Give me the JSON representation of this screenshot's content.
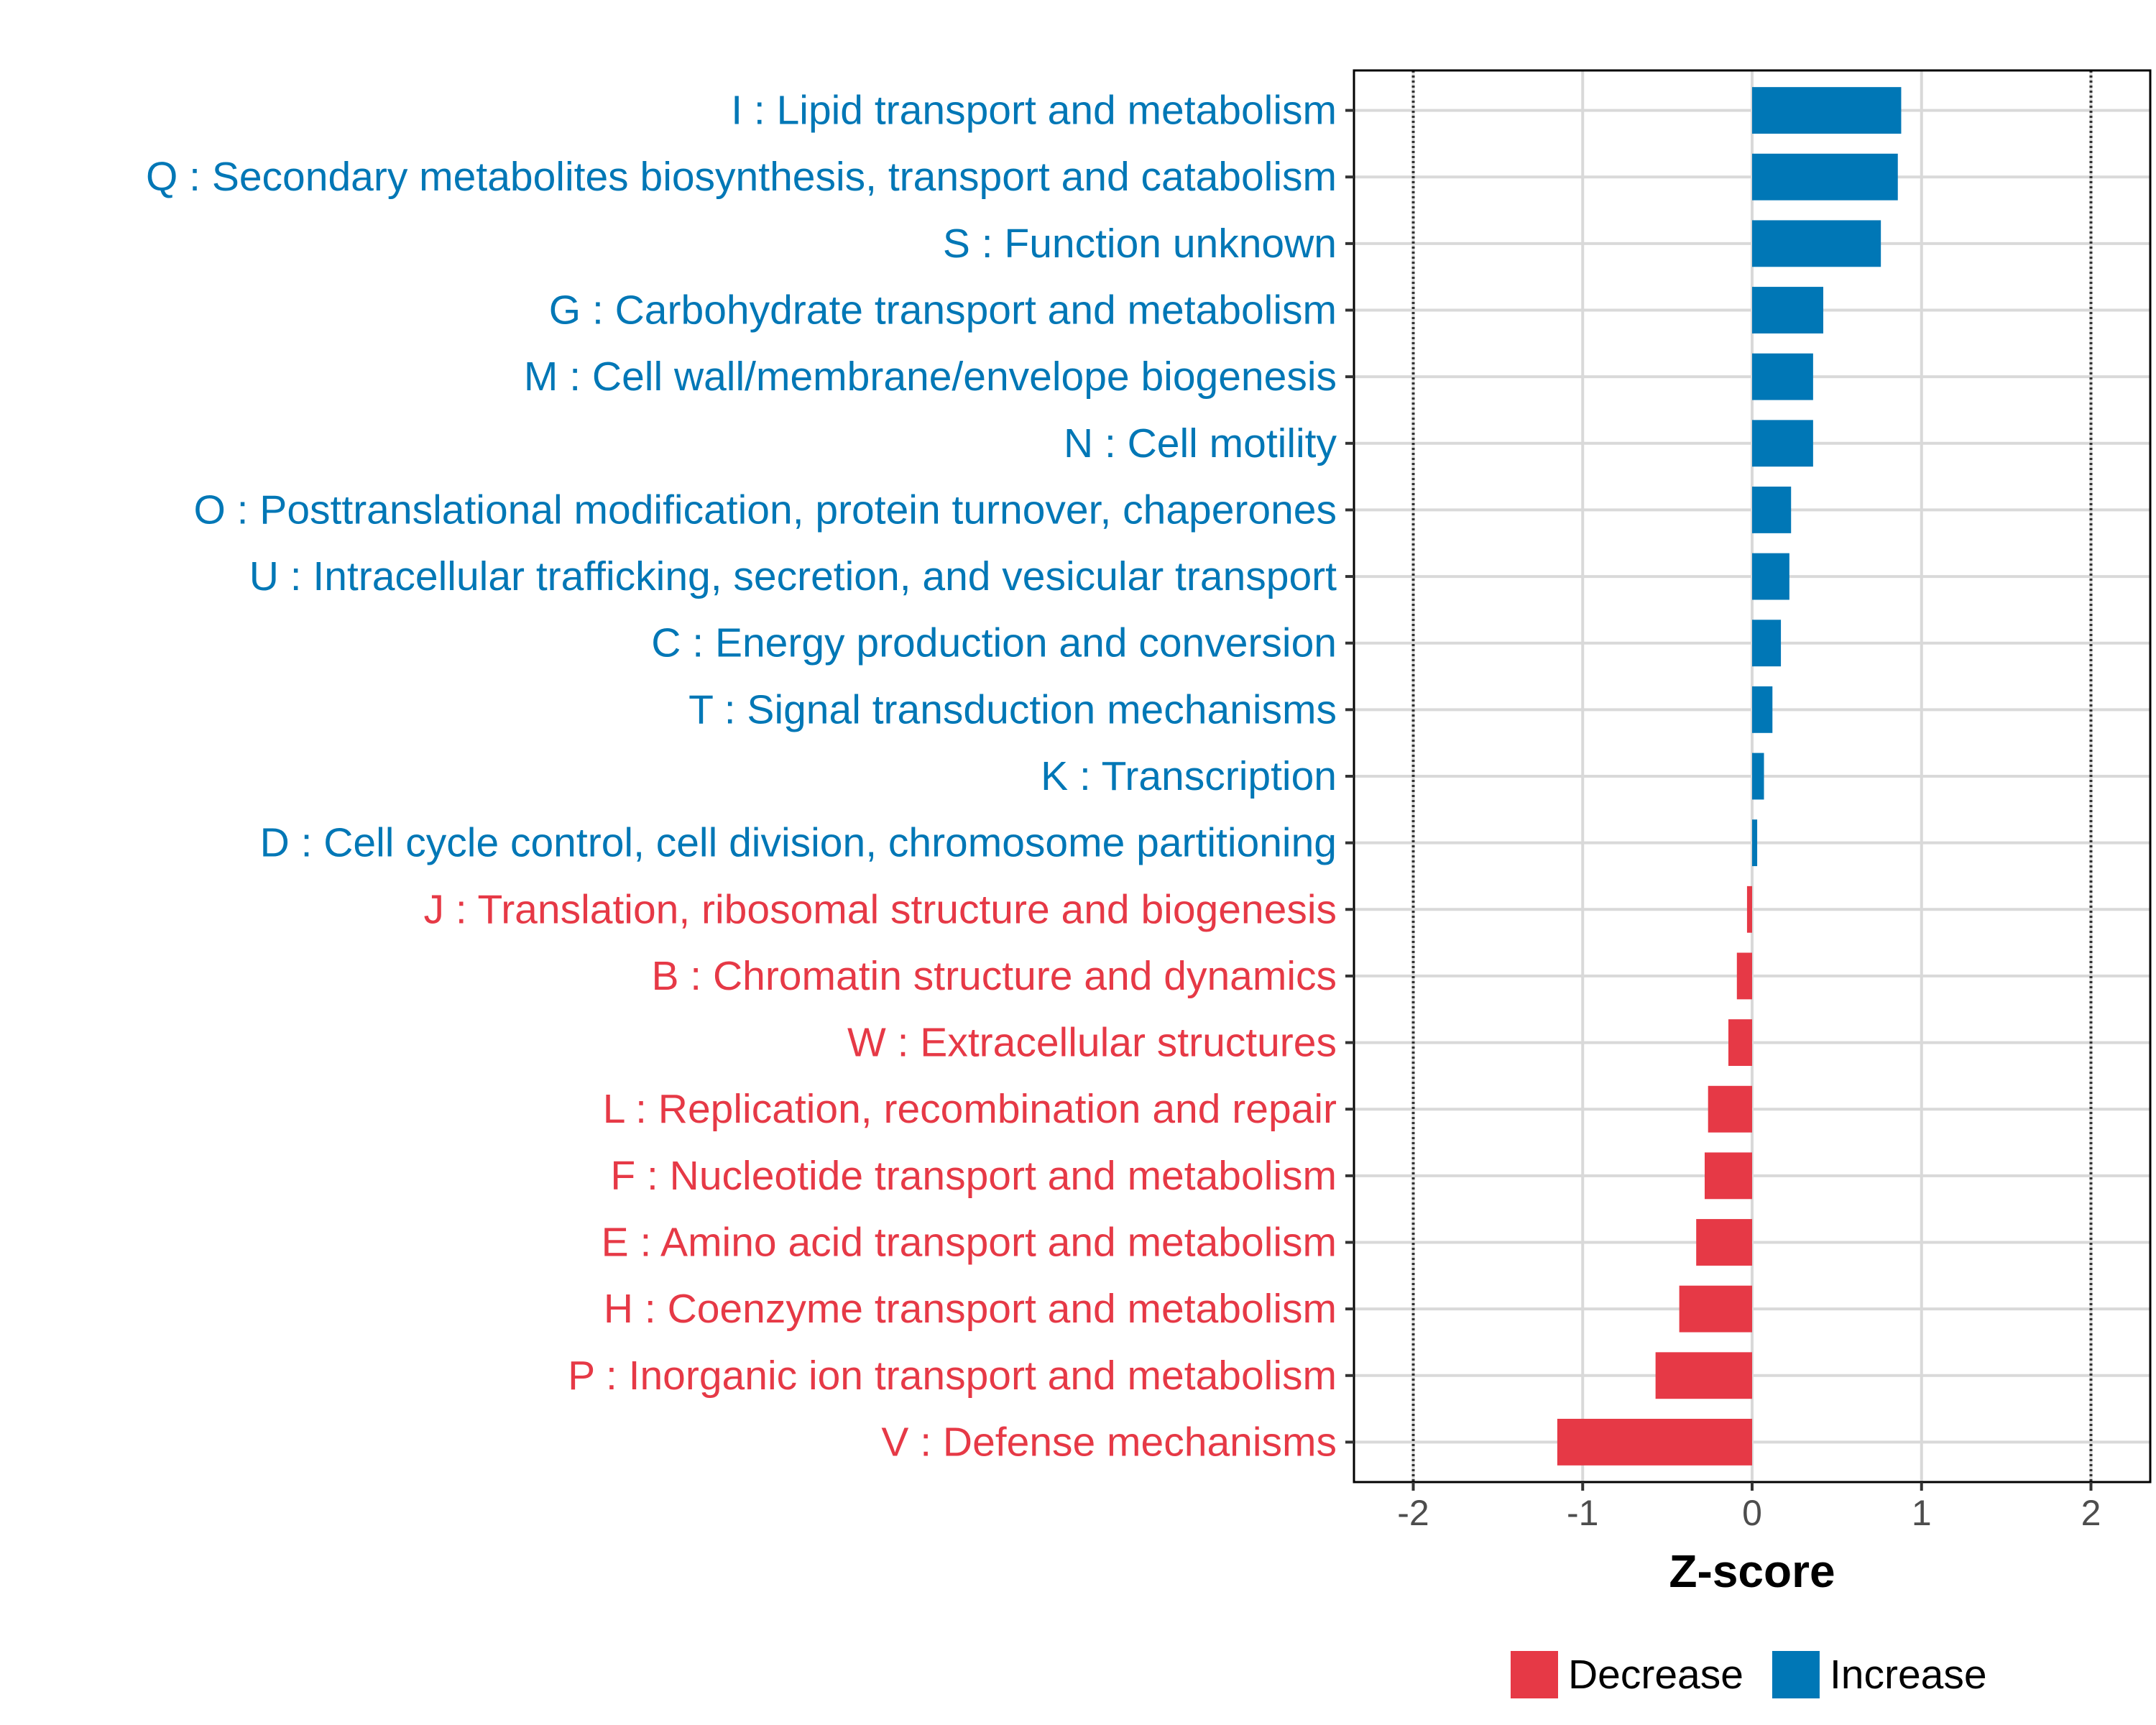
{
  "chart_data": {
    "type": "bar",
    "orientation": "horizontal",
    "title": "",
    "xlabel": "Z-score",
    "ylabel": "",
    "xlim": [
      -2.35,
      2.35
    ],
    "xticks": [
      -2,
      -1,
      0,
      1,
      2
    ],
    "xtick_labels": [
      "-2",
      "-1",
      "0",
      "1",
      "2"
    ],
    "reference_lines": [
      -2,
      2
    ],
    "grid": true,
    "legend_position": "bottom",
    "colors": {
      "Decrease": "#e63946",
      "Increase": "#0077b6"
    },
    "legend": [
      {
        "name": "Decrease",
        "color": "#e63946"
      },
      {
        "name": "Increase",
        "color": "#0077b6"
      }
    ],
    "categories": [
      "I : Lipid transport and metabolism",
      "Q : Secondary metabolites biosynthesis, transport and catabolism",
      "S : Function unknown",
      "G : Carbohydrate transport and metabolism",
      "M : Cell wall/membrane/envelope biogenesis",
      "N : Cell motility",
      "O : Posttranslational modification, protein turnover, chaperones",
      "U : Intracellular trafficking, secretion, and vesicular transport",
      "C : Energy production and conversion",
      "T : Signal transduction mechanisms",
      "K : Transcription",
      "D : Cell cycle control, cell division, chromosome partitioning",
      "J : Translation, ribosomal structure and biogenesis",
      "B : Chromatin structure and dynamics",
      "W : Extracellular structures",
      "L : Replication, recombination and repair",
      "F : Nucleotide transport and metabolism",
      "E : Amino acid transport and metabolism",
      "H : Coenzyme transport and metabolism",
      "P : Inorganic ion transport and metabolism",
      "V : Defense mechanisms"
    ],
    "values": [
      0.88,
      0.86,
      0.76,
      0.42,
      0.36,
      0.36,
      0.23,
      0.22,
      0.17,
      0.12,
      0.07,
      0.03,
      -0.03,
      -0.09,
      -0.14,
      -0.26,
      -0.28,
      -0.33,
      -0.43,
      -0.57,
      -1.15
    ],
    "groups": [
      "Increase",
      "Increase",
      "Increase",
      "Increase",
      "Increase",
      "Increase",
      "Increase",
      "Increase",
      "Increase",
      "Increase",
      "Increase",
      "Increase",
      "Decrease",
      "Decrease",
      "Decrease",
      "Decrease",
      "Decrease",
      "Decrease",
      "Decrease",
      "Decrease",
      "Decrease"
    ]
  }
}
